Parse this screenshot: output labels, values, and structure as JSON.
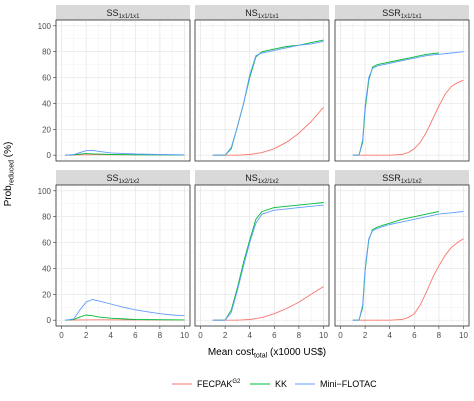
{
  "chart_data": {
    "type": "line",
    "xlabel": "Mean cost",
    "xlabel_sub": "total",
    "xlabel_suffix": " (x1000 US$)",
    "ylabel": "Prob",
    "ylabel_sub": "reduced",
    "ylabel_suffix": " (%)",
    "xlim": [
      0,
      10
    ],
    "ylim": [
      0,
      100
    ],
    "xticks": [
      0,
      2,
      4,
      6,
      8,
      10
    ],
    "yticks": [
      0,
      20,
      40,
      60,
      80,
      100
    ],
    "grid": true,
    "legend_position": "bottom",
    "legend": [
      {
        "name": "FECPAK",
        "sup": "G2",
        "color": "#F8766D"
      },
      {
        "name": "KK",
        "sup": "",
        "color": "#00BA38"
      },
      {
        "name": "Mini−FLOTAC",
        "sup": "",
        "color": "#619CFF"
      }
    ],
    "panels": [
      {
        "base": "SS",
        "sub": "1x1/1x1",
        "series": [
          {
            "name": "FECPAK",
            "x": [
              0.3,
              1,
              2,
              3,
              5,
              10
            ],
            "y": [
              0,
              0.1,
              0.3,
              0.4,
              0.3,
              0.2
            ]
          },
          {
            "name": "KK",
            "x": [
              0.3,
              1,
              1.5,
              2,
              2.5,
              3,
              4,
              6,
              10
            ],
            "y": [
              0,
              0.3,
              0.8,
              1.2,
              1.0,
              0.8,
              0.5,
              0.3,
              0.1
            ]
          },
          {
            "name": "Mini−FLOTAC",
            "x": [
              0.3,
              1,
              1.5,
              2,
              2.5,
              3,
              4,
              6,
              8,
              10
            ],
            "y": [
              0,
              0.5,
              2.0,
              3.5,
              3.8,
              3.0,
              1.8,
              0.9,
              0.5,
              0.3
            ]
          }
        ]
      },
      {
        "base": "NS",
        "sub": "1x1/1x1",
        "series": [
          {
            "name": "FECPAK",
            "x": [
              1,
              3,
              4,
              5,
              6,
              7,
              8,
              9,
              10
            ],
            "y": [
              0,
              0,
              0.5,
              2,
              5,
              10,
              17,
              26,
              37
            ]
          },
          {
            "name": "KK",
            "x": [
              1,
              2,
              2.5,
              3,
              3.5,
              4,
              4.5,
              5,
              6,
              7,
              8,
              9,
              10
            ],
            "y": [
              0,
              0,
              5,
              22,
              40,
              60,
              76,
              80,
              82,
              84,
              85,
              87,
              89
            ]
          },
          {
            "name": "Mini−FLOTAC",
            "x": [
              1,
              2,
              2.5,
              3,
              3.5,
              4,
              4.5,
              5,
              6,
              7,
              8,
              9,
              10
            ],
            "y": [
              0,
              0,
              6,
              22,
              40,
              62,
              77,
              79,
              81,
              83,
              85,
              86,
              88
            ]
          }
        ]
      },
      {
        "base": "SSR",
        "sub": "1x1/1x1",
        "series": [
          {
            "name": "FECPAK",
            "x": [
              1,
              4,
              5,
              5.5,
              6,
              6.5,
              7,
              7.5,
              8,
              8.5,
              9,
              9.5,
              10
            ],
            "y": [
              0,
              0,
              0.5,
              2,
              5,
              10,
              18,
              28,
              38,
              47,
              53,
              56,
              58
            ]
          },
          {
            "name": "KK",
            "x": [
              1,
              1.5,
              1.8,
              2,
              2.3,
              2.6,
              3,
              4,
              5,
              6,
              7,
              8
            ],
            "y": [
              0,
              0,
              10,
              35,
              58,
              68,
              70,
              72,
              74,
              76,
              78,
              79
            ]
          },
          {
            "name": "Mini−FLOTAC",
            "x": [
              1,
              1.5,
              1.8,
              2,
              2.3,
              2.6,
              3,
              4,
              5,
              6,
              7,
              8,
              9,
              10
            ],
            "y": [
              0,
              0,
              12,
              38,
              60,
              67,
              69,
              71,
              73,
              75,
              77,
              78,
              79,
              80
            ]
          }
        ]
      },
      {
        "base": "SS",
        "sub": "1x2/1x2",
        "series": [
          {
            "name": "FECPAK",
            "x": [
              0.3,
              1,
              2,
              3,
              5,
              10
            ],
            "y": [
              0,
              0.1,
              0.2,
              0.3,
              0.2,
              0.1
            ]
          },
          {
            "name": "KK",
            "x": [
              0.3,
              1,
              1.5,
              2,
              2.5,
              3,
              4,
              6,
              10
            ],
            "y": [
              0,
              0.5,
              2.5,
              4.0,
              3.5,
              2.5,
              1.5,
              0.5,
              0.2
            ]
          },
          {
            "name": "Mini−FLOTAC",
            "x": [
              0.3,
              1,
              1.5,
              2,
              2.5,
              3,
              4,
              5,
              6,
              7,
              8,
              9,
              10
            ],
            "y": [
              0,
              1,
              8,
              14,
              16,
              15,
              12.5,
              10,
              8,
              6.5,
              5,
              4,
              3.5
            ]
          }
        ]
      },
      {
        "base": "NS",
        "sub": "1x2/1x2",
        "series": [
          {
            "name": "FECPAK",
            "x": [
              1,
              3,
              4,
              5,
              6,
              7,
              8,
              9,
              10
            ],
            "y": [
              0,
              0,
              0.5,
              2,
              5,
              9,
              14,
              20,
              26
            ]
          },
          {
            "name": "KK",
            "x": [
              1,
              2,
              2.5,
              3,
              3.5,
              4,
              4.5,
              5,
              6,
              7,
              8,
              9,
              10
            ],
            "y": [
              0,
              0,
              8,
              25,
              45,
              62,
              78,
              84,
              87,
              88,
              89,
              90,
              91
            ]
          },
          {
            "name": "Mini−FLOTAC",
            "x": [
              1,
              2,
              2.5,
              3,
              3.5,
              4,
              4.5,
              5,
              6,
              7,
              8,
              9,
              10
            ],
            "y": [
              0,
              0,
              6,
              23,
              42,
              60,
              75,
              82,
              85,
              86,
              87,
              88,
              89
            ]
          }
        ]
      },
      {
        "base": "SSR",
        "sub": "1x1/1x2",
        "series": [
          {
            "name": "FECPAK",
            "x": [
              1,
              4,
              5,
              5.5,
              6,
              6.5,
              7,
              7.5,
              8,
              8.5,
              9,
              9.5,
              10
            ],
            "y": [
              0,
              0,
              0.5,
              2,
              5,
              12,
              22,
              33,
              42,
              50,
              56,
              60,
              63
            ]
          },
          {
            "name": "KK",
            "x": [
              1,
              1.5,
              1.8,
              2,
              2.3,
              2.6,
              3,
              4,
              5,
              6,
              7,
              8
            ],
            "y": [
              0,
              0,
              10,
              38,
              62,
              70,
              72,
              75,
              78,
              80,
              82,
              84
            ]
          },
          {
            "name": "Mini−FLOTAC",
            "x": [
              1,
              1.5,
              1.8,
              2,
              2.3,
              2.6,
              3,
              4,
              5,
              6,
              7,
              8,
              9,
              10
            ],
            "y": [
              0,
              0,
              12,
              40,
              63,
              69,
              71,
              74,
              76,
              78,
              80,
              82,
              83,
              84
            ]
          }
        ]
      }
    ]
  }
}
